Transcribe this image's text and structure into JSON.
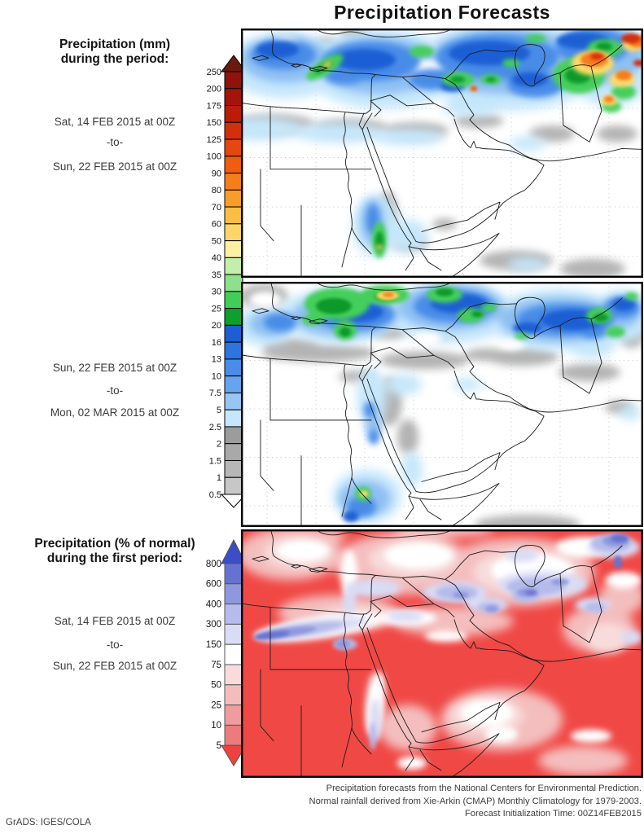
{
  "title": "Precipitation Forecasts",
  "attribution": "GrADS: IGES/COLA",
  "footer": {
    "line1": "Precipitation forecasts from the National Centers for Environmental Prediction.",
    "line2": "Normal rainfall derived from Xie-Arkin (CMAP) Monthly Climatology for 1979-2003.",
    "line3": "Forecast Initialization Time: 00Z14FEB2015"
  },
  "sections": {
    "mm": {
      "heading_line1": "Precipitation (mm)",
      "heading_line2": "during the period:",
      "periods": [
        {
          "start": "Sat, 14 FEB 2015 at 00Z",
          "connector": "-to-",
          "end": "Sun, 22 FEB 2015 at 00Z"
        },
        {
          "start": "Sun, 22 FEB 2015 at 00Z",
          "connector": "-to-",
          "end": "Mon, 02 MAR 2015 at 00Z"
        }
      ]
    },
    "pct": {
      "heading_line1": "Precipitation (% of normal)",
      "heading_line2": "during the first period:",
      "periods": [
        {
          "start": "Sat, 14 FEB 2015 at 00Z",
          "connector": "-to-",
          "end": "Sun, 22 FEB 2015 at 00Z"
        }
      ]
    }
  },
  "colorbars": {
    "mm": {
      "unit": "mm",
      "ticks": [
        250,
        200,
        175,
        150,
        125,
        100,
        90,
        80,
        70,
        60,
        50,
        40,
        35,
        30,
        25,
        20,
        16,
        13,
        10,
        7.5,
        5,
        2.5,
        2,
        1.5,
        1,
        0.5
      ],
      "segment_colors_top_to_bottom": [
        "#8f130b",
        "#a3150a",
        "#bb1b09",
        "#d22f0c",
        "#e6470e",
        "#ee5d10",
        "#f57e1c",
        "#f89d2a",
        "#fabd45",
        "#fcd768",
        "#fdefa4",
        "#c4eeac",
        "#8ee08b",
        "#41ce58",
        "#109e2d",
        "#1e5ed4",
        "#2e74df",
        "#4a8ce8",
        "#67a4ef",
        "#97c5f4",
        "#c6e7fb",
        "#9c9c9c",
        "#a9a9a9",
        "#b7b7b7",
        "#c7c7c7"
      ],
      "arrow_top_color": "#6b1a10",
      "arrow_bottom_color": "#ffffff",
      "outline_color": "#000000"
    },
    "pct": {
      "unit": "% of normal",
      "ticks": [
        800,
        600,
        400,
        300,
        150,
        75,
        50,
        25,
        10,
        5
      ],
      "segment_colors_top_to_bottom": [
        "#6672d1",
        "#8f98de",
        "#b5bbea",
        "#d9dcf5",
        "#ffffff",
        "#f8dcdc",
        "#f4bdbd",
        "#f09c9c",
        "#ec7b7b"
      ],
      "arrow_top_color": "#3d4cc7",
      "arrow_bottom_color": "#ee4242",
      "outline_color": "#555555"
    }
  },
  "map_colors": {
    "panel_background": "#ffffff",
    "pct_base_red": "#f04845",
    "border_line": "#1b1b1b"
  }
}
